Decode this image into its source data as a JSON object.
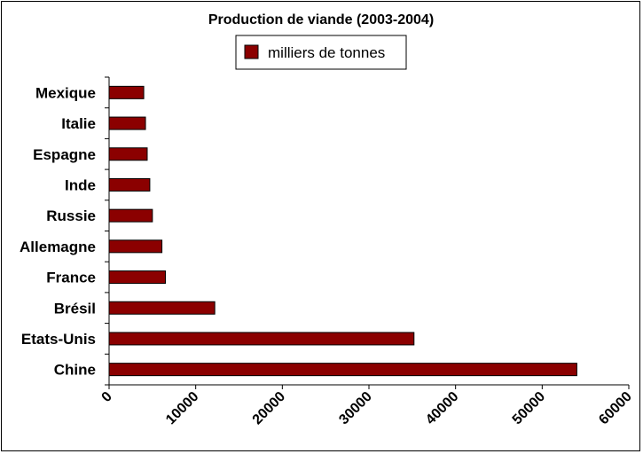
{
  "chart_data": {
    "type": "bar",
    "orientation": "horizontal",
    "title": "Production de viande (2003-2004)",
    "categories": [
      "Chine",
      "Etats-Unis",
      "Brésil",
      "France",
      "Allemagne",
      "Russie",
      "Inde",
      "Espagne",
      "Italie",
      "Mexique"
    ],
    "series": [
      {
        "name": "milliers de tonnes",
        "values": [
          54000,
          35200,
          12200,
          6500,
          6100,
          5000,
          4700,
          4400,
          4200,
          4000
        ]
      }
    ],
    "xlim": [
      0,
      60000
    ],
    "xticks": [
      "0",
      "10000",
      "20000",
      "30000",
      "40000",
      "50000",
      "60000"
    ],
    "grid": false,
    "legend_position": "top",
    "bar_color": "#8b0000"
  }
}
